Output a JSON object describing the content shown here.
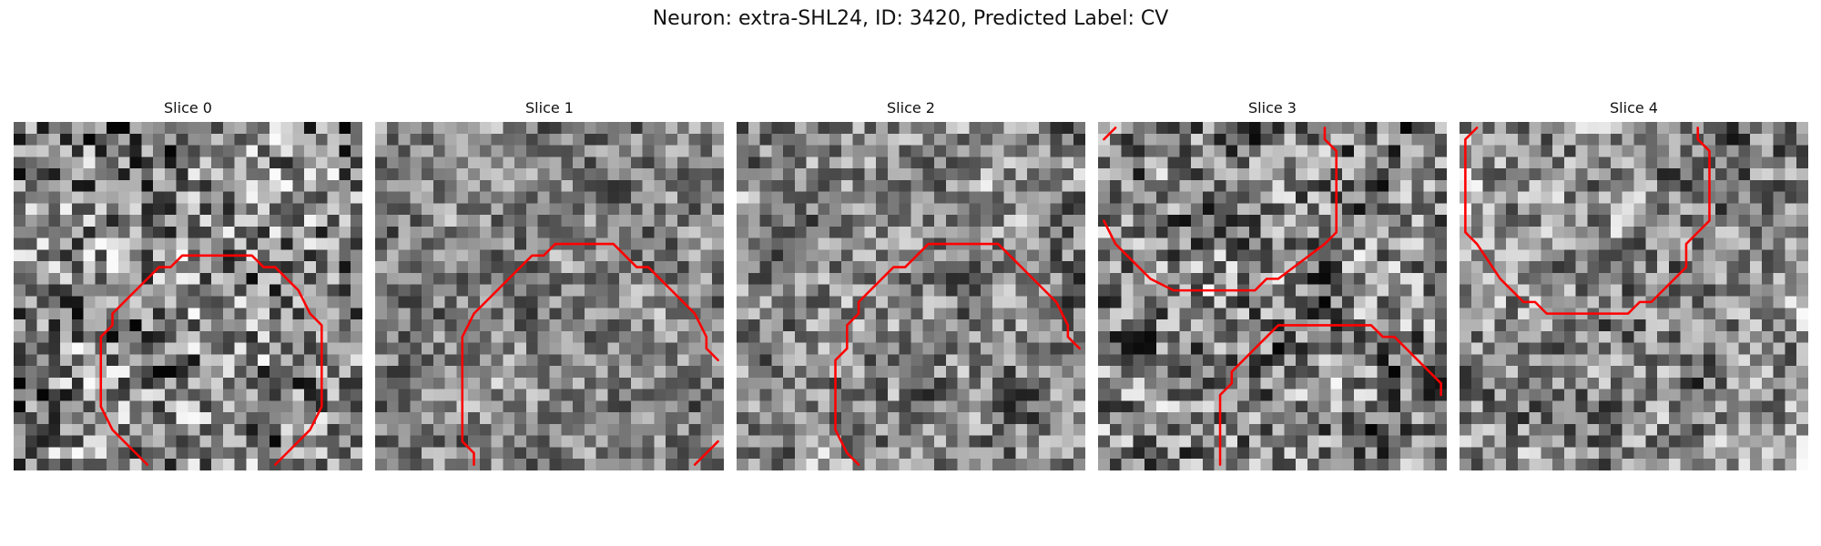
{
  "figure": {
    "title": "Neuron: extra-SHL24, ID: 3420, Predicted Label: CV"
  },
  "colors": {
    "contour": "#ff0000",
    "background": "#ffffff"
  },
  "slices": [
    {
      "label": "Slice 0",
      "contours": [
        [
          [
            11.5,
            29.5
          ],
          [
            10.5,
            28.5
          ],
          [
            8.5,
            26.5
          ],
          [
            7.5,
            24.5
          ],
          [
            7.5,
            18.5
          ],
          [
            8.5,
            17.5
          ],
          [
            8.5,
            16.5
          ],
          [
            11.5,
            13.5
          ],
          [
            12.5,
            12.5
          ],
          [
            13.5,
            12.5
          ],
          [
            14.5,
            11.5
          ],
          [
            20.5,
            11.5
          ],
          [
            21.5,
            12.5
          ],
          [
            22.5,
            12.5
          ],
          [
            24.5,
            14.5
          ],
          [
            25.5,
            16.5
          ],
          [
            26.5,
            17.5
          ],
          [
            26.5,
            24.5
          ],
          [
            25.5,
            26.5
          ],
          [
            23.5,
            28.5
          ],
          [
            22.5,
            29.5
          ]
        ]
      ]
    },
    {
      "label": "Slice 1",
      "contours": [
        [
          [
            8.5,
            29.5
          ],
          [
            8.5,
            28.5
          ],
          [
            7.5,
            27.5
          ],
          [
            7.5,
            18.5
          ],
          [
            8.5,
            16.5
          ],
          [
            12.5,
            12.5
          ],
          [
            13.5,
            11.5
          ],
          [
            14.5,
            11.5
          ],
          [
            15.5,
            10.5
          ],
          [
            20.5,
            10.5
          ],
          [
            21.5,
            11.5
          ],
          [
            22.5,
            12.5
          ],
          [
            23.5,
            12.5
          ],
          [
            25.5,
            14.5
          ],
          [
            27.5,
            16.5
          ],
          [
            28.5,
            18.5
          ],
          [
            28.5,
            19.5
          ],
          [
            29.5,
            20.5
          ]
        ],
        [
          [
            27.5,
            29.5
          ],
          [
            28.5,
            28.5
          ],
          [
            29.5,
            27.5
          ]
        ]
      ]
    },
    {
      "label": "Slice 2",
      "contours": [
        [
          [
            10.5,
            29.5
          ],
          [
            9.5,
            28.5
          ],
          [
            8.5,
            26.5
          ],
          [
            8.5,
            20.5
          ],
          [
            9.5,
            19.5
          ],
          [
            9.5,
            17.5
          ],
          [
            10.5,
            16.5
          ],
          [
            10.5,
            15.5
          ],
          [
            13.5,
            12.5
          ],
          [
            14.5,
            12.5
          ],
          [
            15.5,
            11.5
          ],
          [
            16.5,
            10.5
          ],
          [
            22.5,
            10.5
          ],
          [
            23.5,
            11.5
          ],
          [
            24.5,
            12.5
          ],
          [
            25.5,
            13.5
          ],
          [
            27.5,
            15.5
          ],
          [
            28.5,
            17.5
          ],
          [
            28.5,
            18.5
          ],
          [
            29.5,
            19.5
          ]
        ]
      ]
    },
    {
      "label": "Slice 3",
      "contours": [
        [
          [
            0.5,
            1.5
          ],
          [
            1.5,
            0.5
          ]
        ],
        [
          [
            0.5,
            8.5
          ],
          [
            1.5,
            10.5
          ],
          [
            3.5,
            12.5
          ],
          [
            4.5,
            13.5
          ],
          [
            6.5,
            14.5
          ],
          [
            13.5,
            14.5
          ],
          [
            14.5,
            13.5
          ],
          [
            15.5,
            13.5
          ],
          [
            19.5,
            10.5
          ],
          [
            20.5,
            9.5
          ],
          [
            20.5,
            7.5
          ],
          [
            20.5,
            2.5
          ],
          [
            19.5,
            1.5
          ],
          [
            19.5,
            0.5
          ]
        ],
        [
          [
            10.5,
            29.5
          ],
          [
            10.5,
            23.5
          ],
          [
            11.5,
            22.5
          ],
          [
            11.5,
            21.5
          ],
          [
            13.5,
            19.5
          ],
          [
            15.5,
            17.5
          ],
          [
            16.5,
            17.5
          ],
          [
            17.5,
            17.5
          ],
          [
            23.5,
            17.5
          ],
          [
            24.5,
            18.5
          ],
          [
            25.5,
            18.5
          ],
          [
            28.5,
            21.5
          ],
          [
            29.5,
            22.5
          ],
          [
            29.5,
            23.5
          ]
        ]
      ]
    },
    {
      "label": "Slice 4",
      "contours": [
        [
          [
            1.5,
            0.5
          ],
          [
            0.5,
            1.5
          ],
          [
            0.5,
            9.5
          ],
          [
            1.5,
            10.5
          ],
          [
            3.5,
            13.5
          ],
          [
            5.5,
            15.5
          ],
          [
            6.5,
            15.5
          ],
          [
            7.5,
            16.5
          ],
          [
            14.5,
            16.5
          ],
          [
            15.5,
            15.5
          ],
          [
            16.5,
            15.5
          ],
          [
            19.5,
            12.5
          ],
          [
            19.5,
            10.5
          ],
          [
            20.5,
            9.5
          ],
          [
            21.5,
            8.5
          ],
          [
            21.5,
            2.5
          ],
          [
            20.5,
            1.5
          ],
          [
            20.5,
            0.5
          ]
        ]
      ]
    }
  ]
}
